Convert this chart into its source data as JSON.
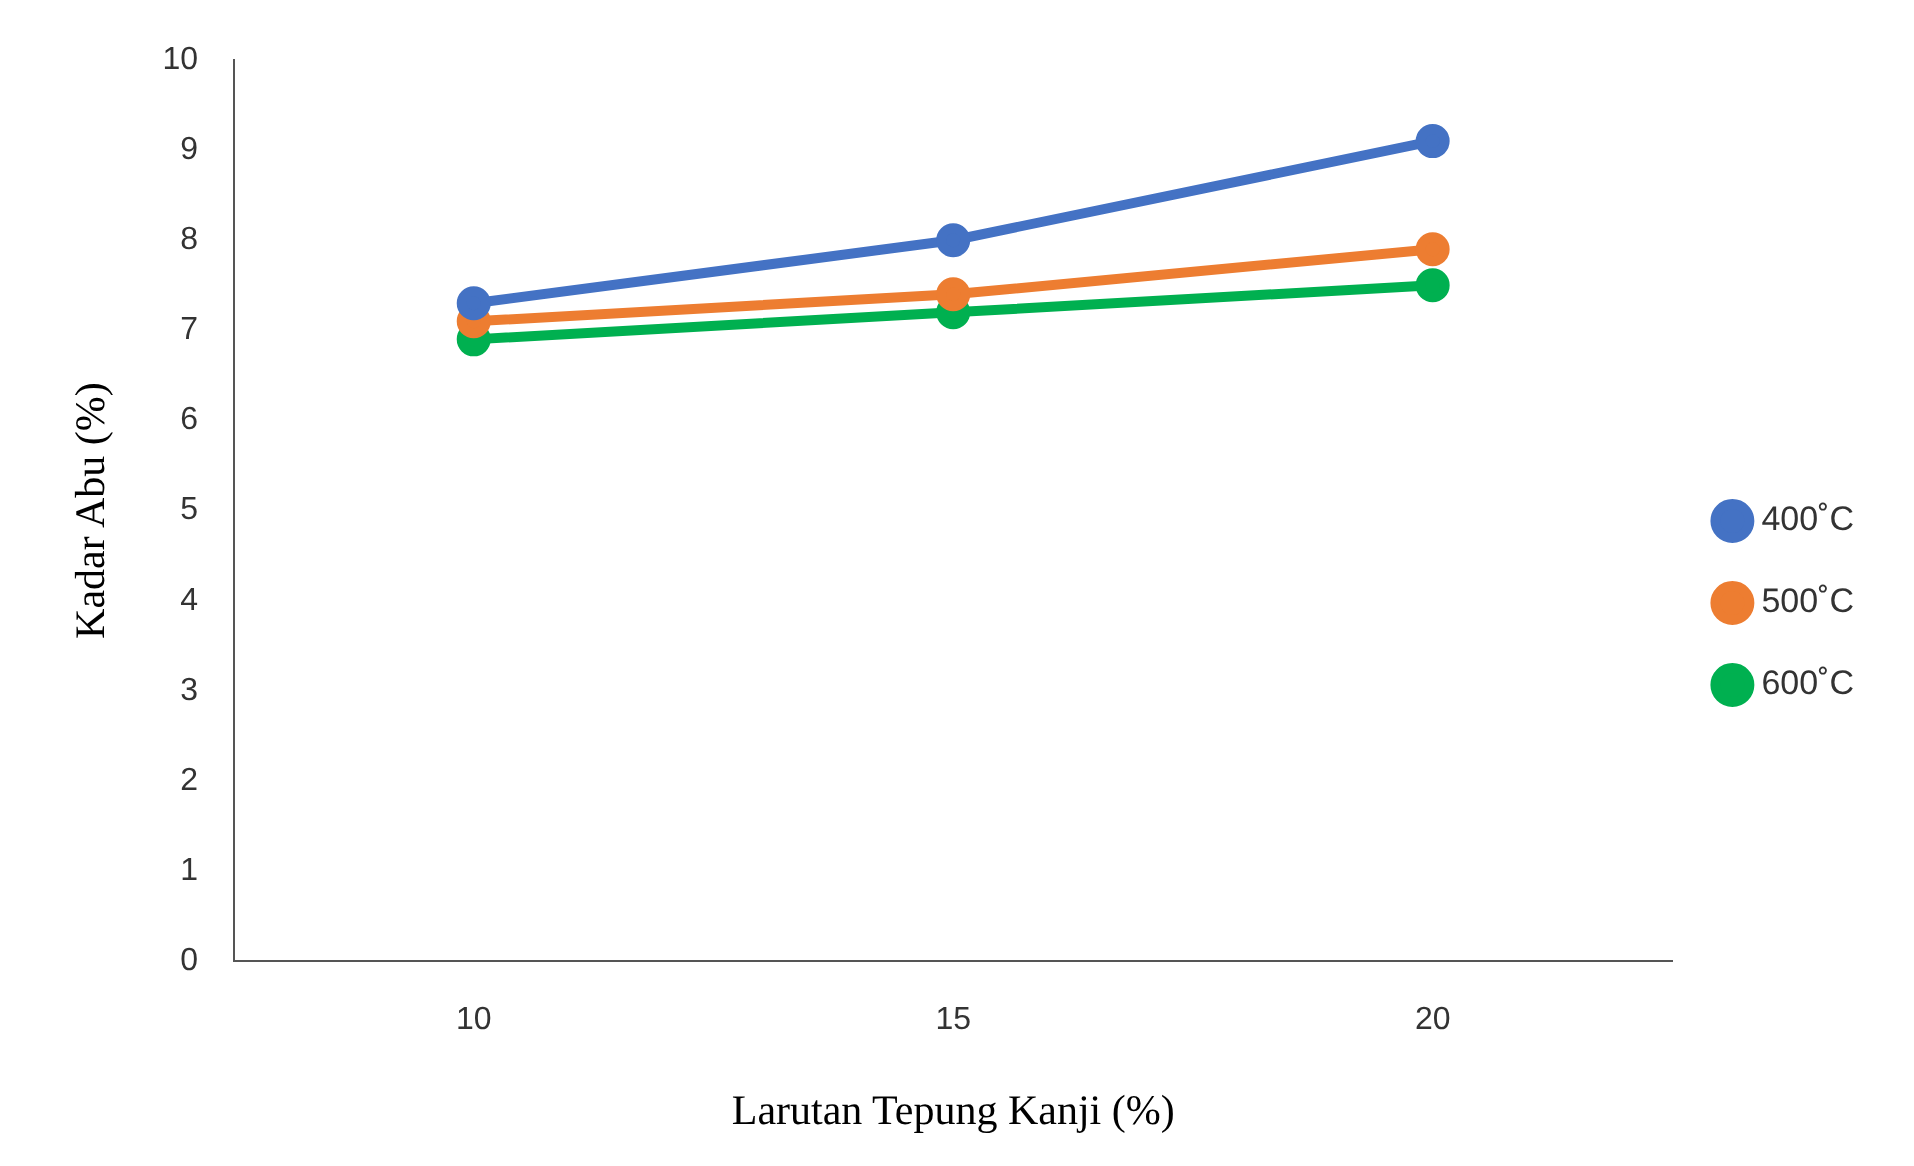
{
  "chart_data": {
    "type": "line",
    "xlabel": "Larutan Tepung Kanji (%)",
    "ylabel": "Kadar Abu (%)",
    "categories": [
      "10",
      "15",
      "20"
    ],
    "series": [
      {
        "name": "400˚C",
        "color": "#4472c4",
        "values": [
          7.3,
          8.0,
          9.1
        ]
      },
      {
        "name": "500˚C",
        "color": "#ed7d31",
        "values": [
          7.1,
          7.4,
          7.9
        ]
      },
      {
        "name": "600˚C",
        "color": "#00b050",
        "values": [
          6.9,
          7.2,
          7.5
        ]
      }
    ],
    "ylim": [
      0,
      10
    ],
    "yticks": [
      0,
      1,
      2,
      3,
      4,
      5,
      6,
      7,
      8,
      9,
      10
    ],
    "grid": false,
    "legend": "right",
    "marker": "circle",
    "line_style": "solid"
  }
}
